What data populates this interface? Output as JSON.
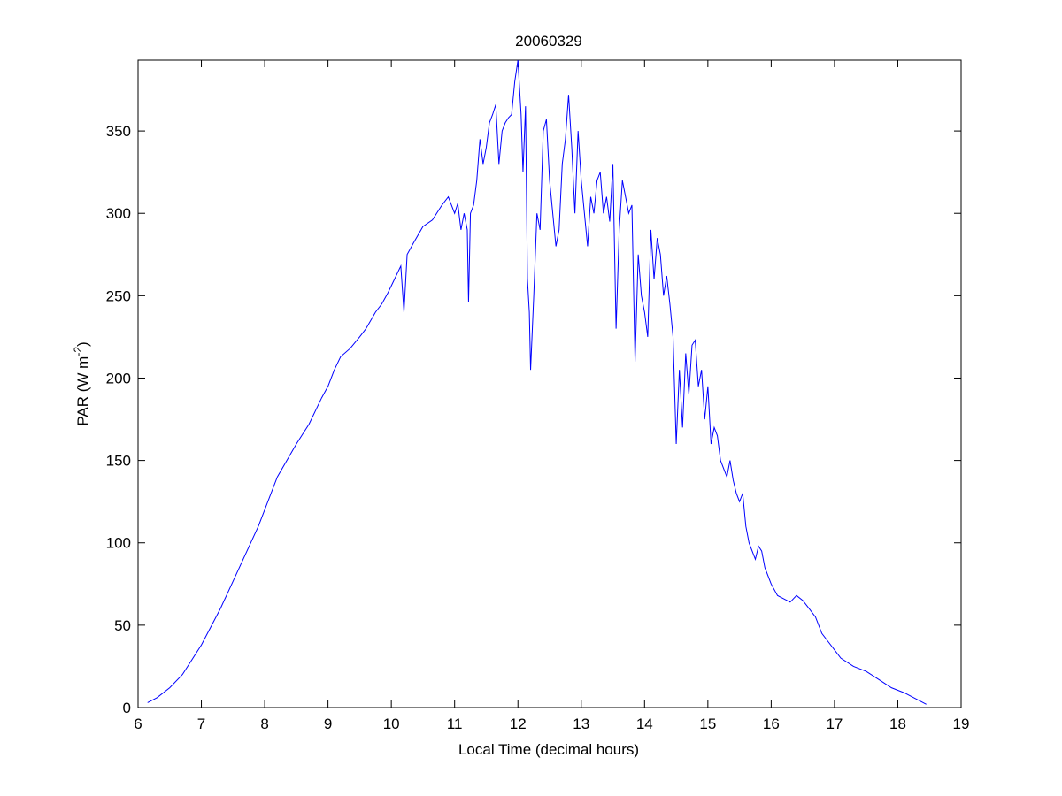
{
  "chart_data": {
    "type": "line",
    "title": "20060329",
    "xlabel": "Local Time (decimal hours)",
    "ylabel": {
      "main": "PAR (W m",
      "sup": "-2",
      "close": ")"
    },
    "xlim": [
      6,
      19
    ],
    "ylim": [
      0,
      393
    ],
    "xticks": [
      6,
      7,
      8,
      9,
      10,
      11,
      12,
      13,
      14,
      15,
      16,
      17,
      18,
      19
    ],
    "yticks": [
      0,
      50,
      100,
      150,
      200,
      250,
      300,
      350
    ],
    "grid": false,
    "line_color": "#0000ff",
    "series": [
      {
        "x": [
          6.15,
          6.3,
          6.5,
          6.7,
          7.0,
          7.3,
          7.6,
          7.9,
          8.2,
          8.5,
          8.7,
          8.9,
          9.0,
          9.1,
          9.2,
          9.35,
          9.5,
          9.6,
          9.75,
          9.85,
          9.95,
          10.05,
          10.15,
          10.2,
          10.25,
          10.35,
          10.5,
          10.65,
          10.8,
          10.9,
          11.0,
          11.05,
          11.1,
          11.15,
          11.2,
          11.22,
          11.25,
          11.3,
          11.35,
          11.4,
          11.45,
          11.5,
          11.55,
          11.6,
          11.65,
          11.7,
          11.75,
          11.8,
          11.85,
          11.9,
          11.95,
          12.0,
          12.05,
          12.08,
          12.12,
          12.15,
          12.18,
          12.2,
          12.25,
          12.3,
          12.35,
          12.4,
          12.45,
          12.5,
          12.55,
          12.6,
          12.65,
          12.7,
          12.75,
          12.8,
          12.85,
          12.9,
          12.95,
          13.0,
          13.05,
          13.1,
          13.15,
          13.2,
          13.25,
          13.3,
          13.35,
          13.4,
          13.45,
          13.5,
          13.55,
          13.6,
          13.65,
          13.7,
          13.75,
          13.8,
          13.85,
          13.9,
          13.95,
          14.0,
          14.05,
          14.1,
          14.15,
          14.2,
          14.25,
          14.3,
          14.35,
          14.4,
          14.45,
          14.5,
          14.55,
          14.6,
          14.65,
          14.7,
          14.75,
          14.8,
          14.85,
          14.9,
          14.95,
          15.0,
          15.05,
          15.1,
          15.15,
          15.2,
          15.25,
          15.3,
          15.35,
          15.4,
          15.45,
          15.5,
          15.55,
          15.6,
          15.65,
          15.7,
          15.75,
          15.8,
          15.85,
          15.9,
          16.0,
          16.1,
          16.2,
          16.3,
          16.4,
          16.5,
          16.6,
          16.7,
          16.8,
          16.9,
          17.0,
          17.1,
          17.3,
          17.5,
          17.7,
          17.9,
          18.1,
          18.3,
          18.45
        ],
        "y": [
          3,
          6,
          12,
          20,
          38,
          60,
          85,
          110,
          140,
          160,
          172,
          188,
          195,
          205,
          213,
          218,
          225,
          230,
          240,
          245,
          252,
          260,
          268,
          240,
          275,
          282,
          292,
          296,
          305,
          310,
          300,
          306,
          290,
          300,
          290,
          246,
          300,
          305,
          320,
          345,
          330,
          340,
          355,
          360,
          366,
          330,
          350,
          355,
          358,
          360,
          380,
          393,
          360,
          325,
          365,
          260,
          240,
          205,
          250,
          300,
          290,
          350,
          357,
          320,
          300,
          280,
          290,
          330,
          345,
          372,
          340,
          300,
          350,
          320,
          300,
          280,
          310,
          300,
          320,
          325,
          300,
          310,
          295,
          330,
          230,
          290,
          320,
          310,
          300,
          305,
          210,
          275,
          250,
          240,
          225,
          290,
          260,
          285,
          275,
          250,
          262,
          245,
          225,
          160,
          205,
          170,
          215,
          190,
          220,
          223,
          195,
          205,
          175,
          195,
          160,
          170,
          165,
          150,
          145,
          140,
          150,
          138,
          130,
          125,
          130,
          110,
          100,
          95,
          90,
          98,
          95,
          85,
          75,
          68,
          66,
          64,
          68,
          65,
          60,
          55,
          45,
          40,
          35,
          30,
          25,
          22,
          17,
          12,
          9,
          5,
          2
        ]
      }
    ]
  }
}
